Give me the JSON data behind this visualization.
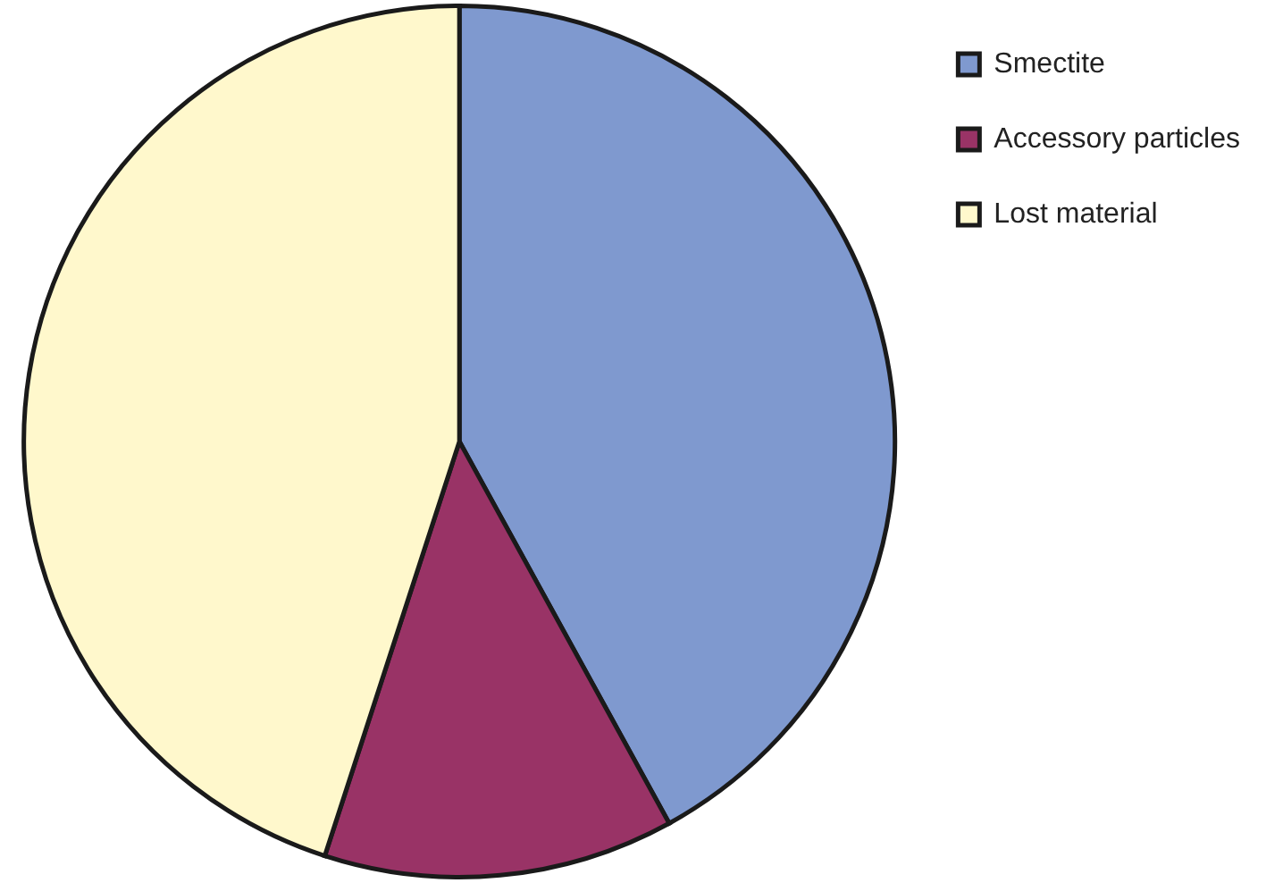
{
  "chart_data": {
    "type": "pie",
    "categories": [
      "Smectite",
      "Accessory particles",
      "Lost material"
    ],
    "values": [
      42,
      13,
      45
    ],
    "colors": [
      "#7f99cf",
      "#993366",
      "#fff8cc"
    ],
    "legend": "top right"
  }
}
